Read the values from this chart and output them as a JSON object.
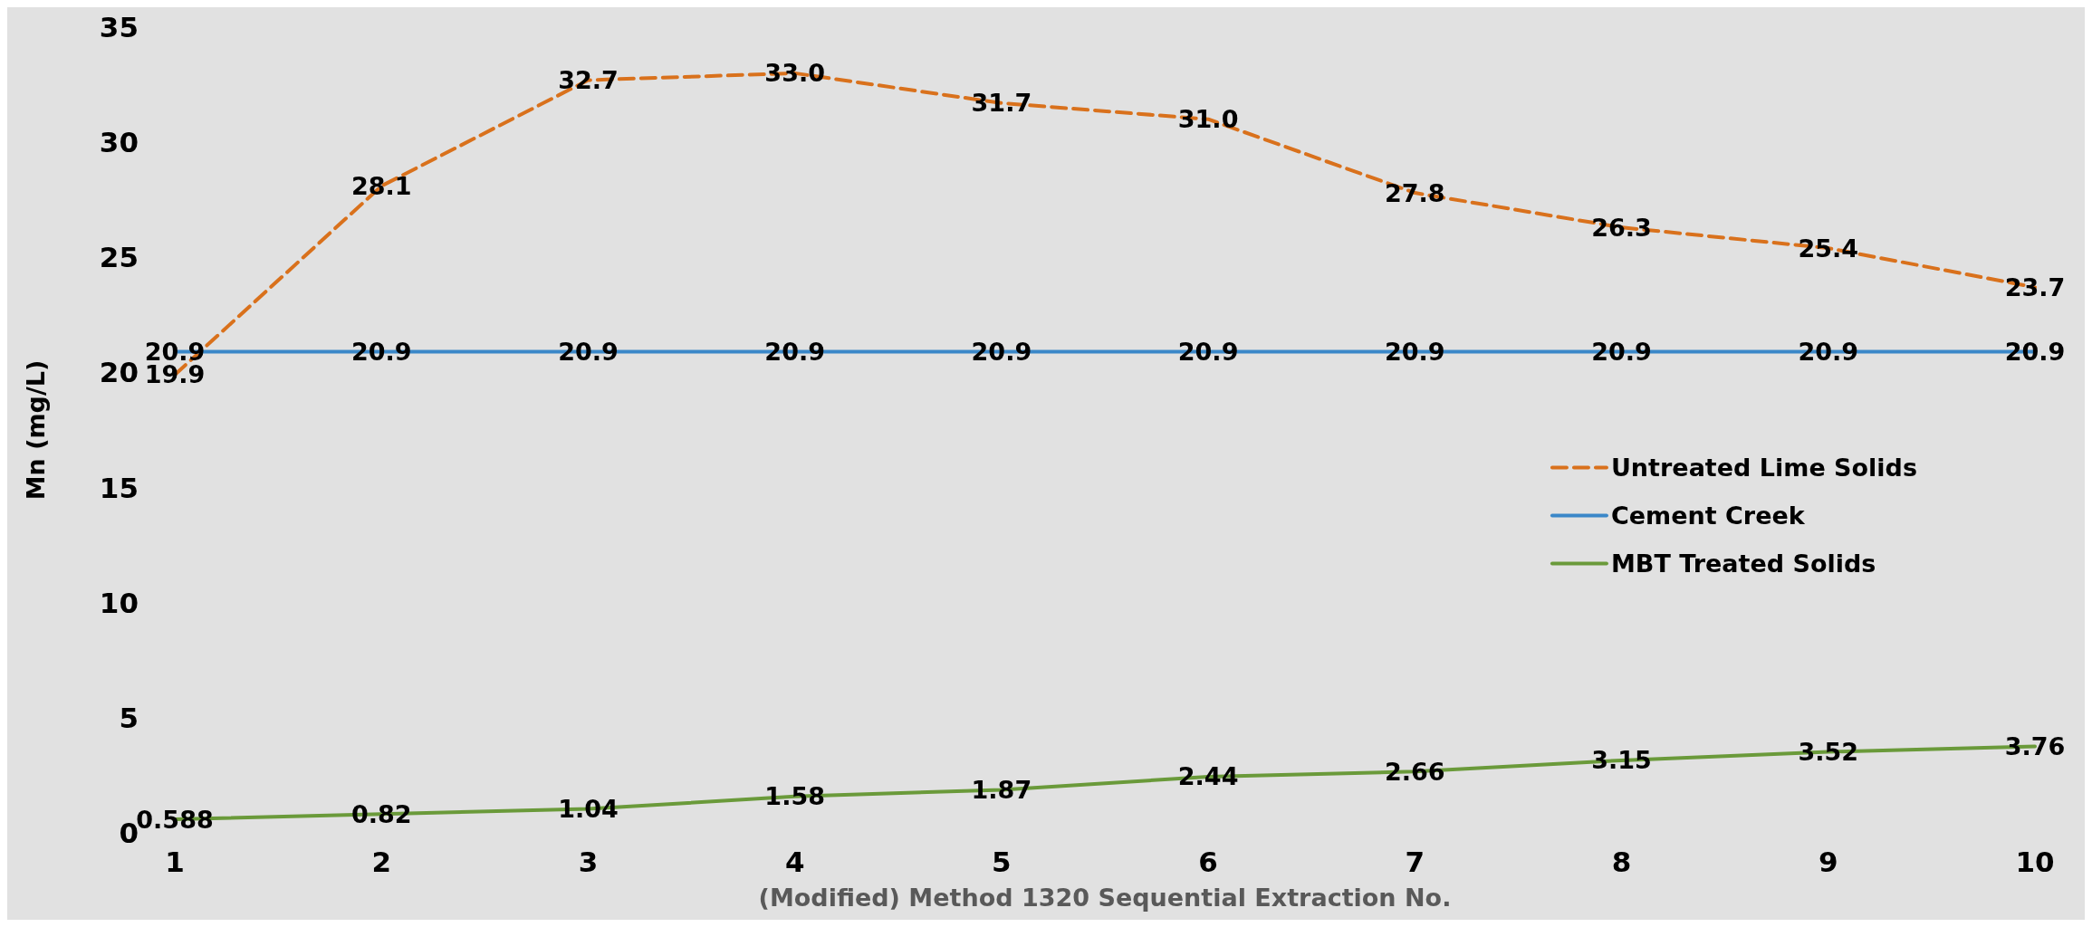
{
  "chart_data": {
    "type": "line",
    "xlabel": "(Modified) Method 1320 Sequential Extraction No.",
    "ylabel": "Mn (mg/L)",
    "x": [
      1,
      2,
      3,
      4,
      5,
      6,
      7,
      8,
      9,
      10
    ],
    "xlim": [
      1,
      10
    ],
    "xticks": [
      1,
      2,
      3,
      4,
      5,
      6,
      7,
      8,
      9,
      10
    ],
    "ylim": [
      0,
      35
    ],
    "yticks": [
      0,
      5,
      10,
      15,
      20,
      25,
      30,
      35
    ],
    "grid": false,
    "legend": "right",
    "marker": "none",
    "series": [
      {
        "name": "Untreated Lime Solids",
        "color": "#d9711c",
        "line_style": "dashed",
        "values": [
          19.9,
          28.1,
          32.7,
          33.0,
          31.7,
          31.0,
          27.8,
          26.3,
          25.4,
          23.7
        ],
        "value_labels": [
          "19.9",
          "28.1",
          "32.7",
          "33.0",
          "31.7",
          "31.0",
          "27.8",
          "26.3",
          "25.4",
          "23.7"
        ]
      },
      {
        "name": "Cement Creek",
        "color": "#3a87c8",
        "line_style": "solid",
        "values": [
          20.9,
          20.9,
          20.9,
          20.9,
          20.9,
          20.9,
          20.9,
          20.9,
          20.9,
          20.9
        ],
        "value_labels": [
          "20.9",
          "20.9",
          "20.9",
          "20.9",
          "20.9",
          "20.9",
          "20.9",
          "20.9",
          "20.9",
          "20.9"
        ]
      },
      {
        "name": "MBT Treated Solids",
        "color": "#6a9a3a",
        "line_style": "solid",
        "values": [
          0.588,
          0.82,
          1.04,
          1.58,
          1.87,
          2.44,
          2.66,
          3.15,
          3.52,
          3.76
        ],
        "value_labels": [
          "0.588",
          "0.82",
          "1.04",
          "1.58",
          "1.87",
          "2.44",
          "2.66",
          "3.15",
          "3.52",
          "3.76"
        ]
      }
    ]
  }
}
